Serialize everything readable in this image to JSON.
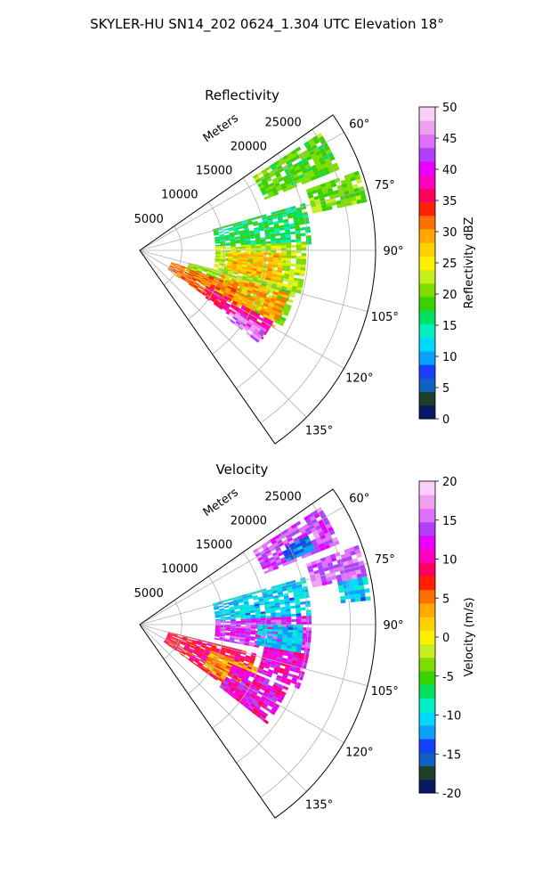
{
  "suptitle": "SKYLER-HU  SN14_202  0624_1.304 UTC Elevation 18°",
  "chart_data": [
    {
      "type": "heatmap",
      "title": "Reflectivity",
      "projection": "polar-sector",
      "range_label": "Meters",
      "range_ticks": [
        5000,
        10000,
        15000,
        20000,
        25000
      ],
      "range_max": 28000,
      "azimuth_range_deg": [
        55,
        145
      ],
      "azimuth_ticks": [
        "60°",
        "75°",
        "90°",
        "105°",
        "120°",
        "135°"
      ],
      "grid": true,
      "colorbar": {
        "label": "Reflectivity dBZ",
        "min": 0,
        "max": 50,
        "ticks": [
          0,
          5,
          10,
          15,
          20,
          25,
          30,
          35,
          40,
          45,
          50
        ],
        "colors": [
          "#0b1a5e",
          "#1e3f2a",
          "#1060c0",
          "#1840ff",
          "#0aa0ff",
          "#00d8ff",
          "#00f0c0",
          "#00e060",
          "#38d000",
          "#7ddc00",
          "#c8f020",
          "#fff000",
          "#ffd000",
          "#ffa800",
          "#ff7000",
          "#ff2000",
          "#ff0060",
          "#ff00c0",
          "#e800ff",
          "#b040ff",
          "#e070ff",
          "#f0a0f0",
          "#fad0fa"
        ]
      },
      "echo_regions": [
        {
          "az": [
            57,
            68
          ],
          "r": [
            16000,
            25500
          ],
          "value": 19
        },
        {
          "az": [
            70,
            78
          ],
          "r": [
            21000,
            27500
          ],
          "value": 20
        },
        {
          "az": [
            74,
            88
          ],
          "r": [
            9000,
            20000
          ],
          "value": 16
        },
        {
          "az": [
            87,
            105
          ],
          "r": [
            9000,
            19500
          ],
          "value": 22
        },
        {
          "az": [
            91,
            103
          ],
          "r": [
            10500,
            17000
          ],
          "value": 28
        },
        {
          "az": [
            104,
            118
          ],
          "r": [
            6000,
            19000
          ],
          "value": 21
        },
        {
          "az": [
            106,
            120
          ],
          "r": [
            10000,
            18000
          ],
          "value": 29
        },
        {
          "az": [
            110,
            125
          ],
          "r": [
            4000,
            12000
          ],
          "value": 31
        },
        {
          "az": [
            118,
            126
          ],
          "r": [
            9000,
            18000
          ],
          "value": 36
        },
        {
          "az": [
            122,
            128
          ],
          "r": [
            13000,
            17500
          ],
          "value": 45
        }
      ]
    },
    {
      "type": "heatmap",
      "title": "Velocity",
      "projection": "polar-sector",
      "range_label": "Meters",
      "range_ticks": [
        5000,
        10000,
        15000,
        20000,
        25000
      ],
      "range_max": 28000,
      "azimuth_range_deg": [
        55,
        145
      ],
      "azimuth_ticks": [
        "60°",
        "75°",
        "90°",
        "105°",
        "120°",
        "135°"
      ],
      "grid": true,
      "colorbar": {
        "label": "Velocity (m/s)",
        "min": -20,
        "max": 20,
        "ticks": [
          -20,
          -15,
          -10,
          -5,
          0,
          5,
          10,
          15,
          20
        ],
        "colors": [
          "#0b1a5e",
          "#1e3f2a",
          "#1060c0",
          "#1840ff",
          "#0aa0ff",
          "#00d8ff",
          "#00f0c0",
          "#00e060",
          "#38d000",
          "#7ddc00",
          "#c8f020",
          "#fff000",
          "#ffd000",
          "#ffa800",
          "#ff7000",
          "#ff2000",
          "#ff0060",
          "#ff00c0",
          "#e800ff",
          "#b040ff",
          "#e070ff",
          "#f0a0f0",
          "#fad0fa"
        ]
      },
      "echo_regions": [
        {
          "az": [
            57,
            68
          ],
          "r": [
            16000,
            25500
          ],
          "value": 14
        },
        {
          "az": [
            62,
            67
          ],
          "r": [
            19000,
            22500
          ],
          "value": -14
        },
        {
          "az": [
            70,
            78
          ],
          "r": [
            21000,
            27500
          ],
          "value": 15
        },
        {
          "az": [
            78,
            84
          ],
          "r": [
            24000,
            27500
          ],
          "value": -11
        },
        {
          "az": [
            74,
            88
          ],
          "r": [
            9000,
            20000
          ],
          "value": -11
        },
        {
          "az": [
            87,
            101
          ],
          "r": [
            9000,
            20000
          ],
          "value": 13
        },
        {
          "az": [
            90,
            100
          ],
          "r": [
            14000,
            19000
          ],
          "value": -11
        },
        {
          "az": [
            100,
            112
          ],
          "r": [
            15000,
            20000
          ],
          "value": 11
        },
        {
          "az": [
            104,
            126
          ],
          "r": [
            3500,
            14000
          ],
          "value": 8
        },
        {
          "az": [
            110,
            124
          ],
          "r": [
            9000,
            15000
          ],
          "value": 3
        },
        {
          "az": [
            113,
            128
          ],
          "r": [
            12000,
            19000
          ],
          "value": 11
        }
      ]
    }
  ]
}
